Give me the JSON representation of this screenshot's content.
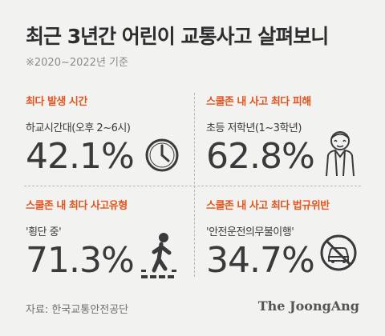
{
  "title": "최근 3년간 어린이 교통사고 살펴보니",
  "subtitle": "※2020~2022년 기준",
  "cards": [
    {
      "label": "최다 발생 시간",
      "desc": "하교시간대(오후 2~6시)",
      "value": "42.1%",
      "icon": "clock-icon"
    },
    {
      "label": "스쿨존 내 사고 최다 피해",
      "desc": "초등 저학년(1~3학년)",
      "value": "62.8%",
      "icon": "child-icon"
    },
    {
      "label": "스쿨존 내 최다 사고유형",
      "desc": "'횡단 중'",
      "value": "71.3%",
      "icon": "pedestrian-crossing-icon"
    },
    {
      "label": "스쿨존 내 사고 최다 법규위반",
      "desc": "'안전운전의무불이행'",
      "value": "34.7%",
      "icon": "no-car-icon"
    }
  ],
  "source": "자료: 한국교통안전공단",
  "logo": "The JoongAng",
  "colors": {
    "accent": "#e2551e",
    "background": "#f2f2f1",
    "text": "#3a3a3a"
  }
}
